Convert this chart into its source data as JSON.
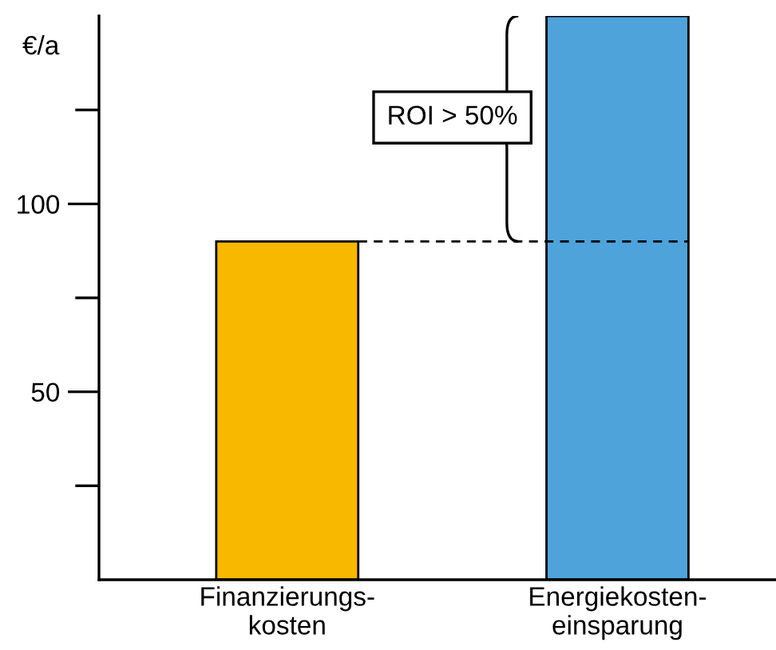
{
  "chart_data": {
    "type": "bar",
    "ylabel": "€/a",
    "categories": [
      "Finanzierungs-\nkosten",
      "Energiekosten-\neinsparung"
    ],
    "values": [
      90,
      150
    ],
    "colors": [
      "#f9b800",
      "#4ea3db"
    ],
    "ylim": [
      0,
      150
    ],
    "yticks": [
      {
        "value": 25,
        "label": null
      },
      50,
      {
        "value": 75,
        "label": null
      },
      100,
      {
        "value": 125,
        "label": null
      }
    ],
    "ref_lines": [
      {
        "axis": "y",
        "value": 90,
        "color": "#000000",
        "line_style": "dashed"
      }
    ],
    "annotations": [
      "ROI > 50%"
    ],
    "grid": false
  }
}
